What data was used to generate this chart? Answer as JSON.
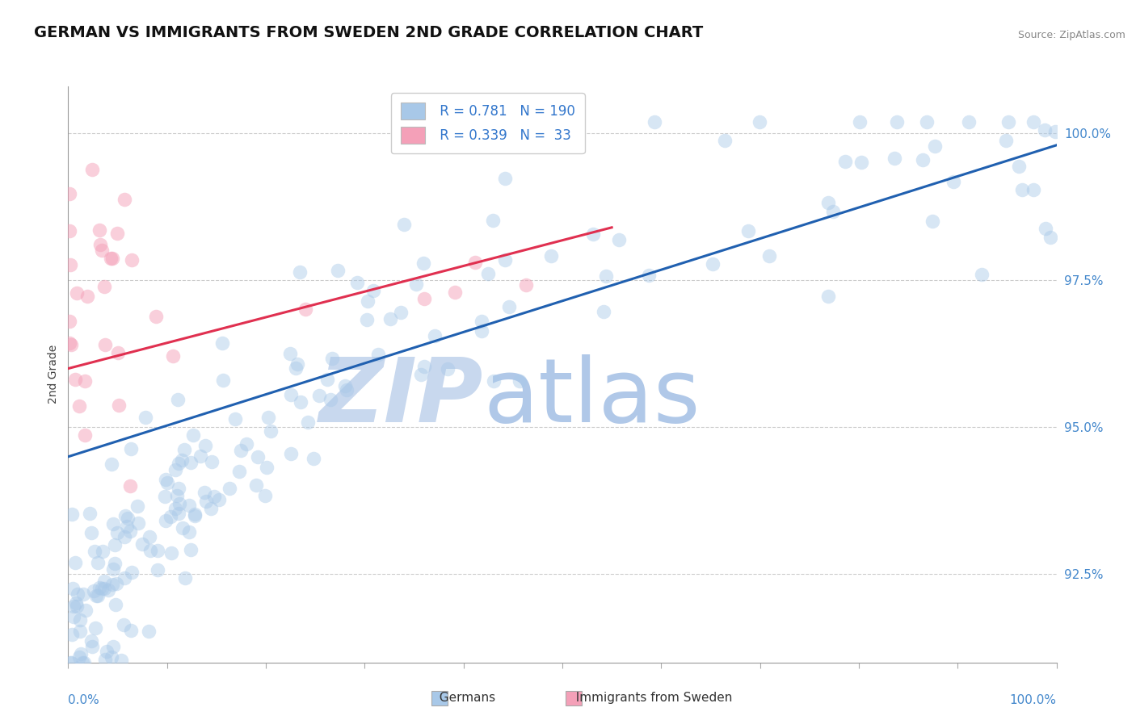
{
  "title": "GERMAN VS IMMIGRANTS FROM SWEDEN 2ND GRADE CORRELATION CHART",
  "source_text": "Source: ZipAtlas.com",
  "ylabel": "2nd Grade",
  "y_tick_values": [
    0.925,
    0.95,
    0.975,
    1.0
  ],
  "legend_r": [
    0.781,
    0.339
  ],
  "legend_n": [
    190,
    33
  ],
  "blue_color": "#a8c8e8",
  "pink_color": "#f4a0b8",
  "blue_line_color": "#2060b0",
  "pink_line_color": "#e03050",
  "watermark_zip_color": "#c8d8ee",
  "watermark_atlas_color": "#b0c8e8",
  "background_color": "#ffffff",
  "grid_color": "#cccccc",
  "title_fontsize": 14,
  "legend_fontsize": 12,
  "xlim": [
    0.0,
    1.0
  ],
  "ylim": [
    0.91,
    1.008
  ],
  "blue_trend_x": [
    0.0,
    1.0
  ],
  "blue_trend_y": [
    0.945,
    0.998
  ],
  "pink_trend_x": [
    0.0,
    0.55
  ],
  "pink_trend_y": [
    0.96,
    0.984
  ]
}
